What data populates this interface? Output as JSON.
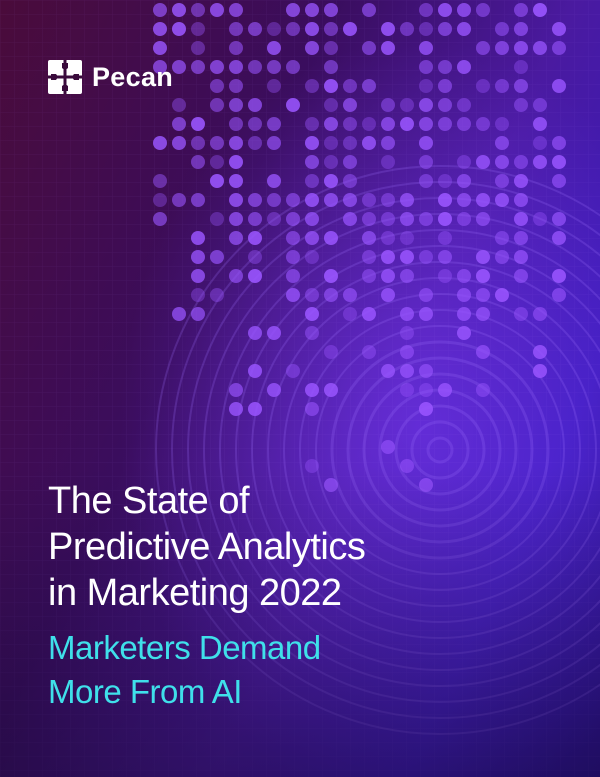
{
  "brand": {
    "name": "Pecan",
    "logo_icon": "pecan-logo-icon"
  },
  "title_lines": [
    "The State of",
    "Predictive Analytics",
    "in Marketing 2022"
  ],
  "subtitle_lines": [
    "Marketers Demand",
    "More From AI"
  ],
  "colors": {
    "title": "#ffffff",
    "subtitle": "#3fe0ea",
    "background_start": "#4a0b3a",
    "background_end": "#2a1290"
  }
}
